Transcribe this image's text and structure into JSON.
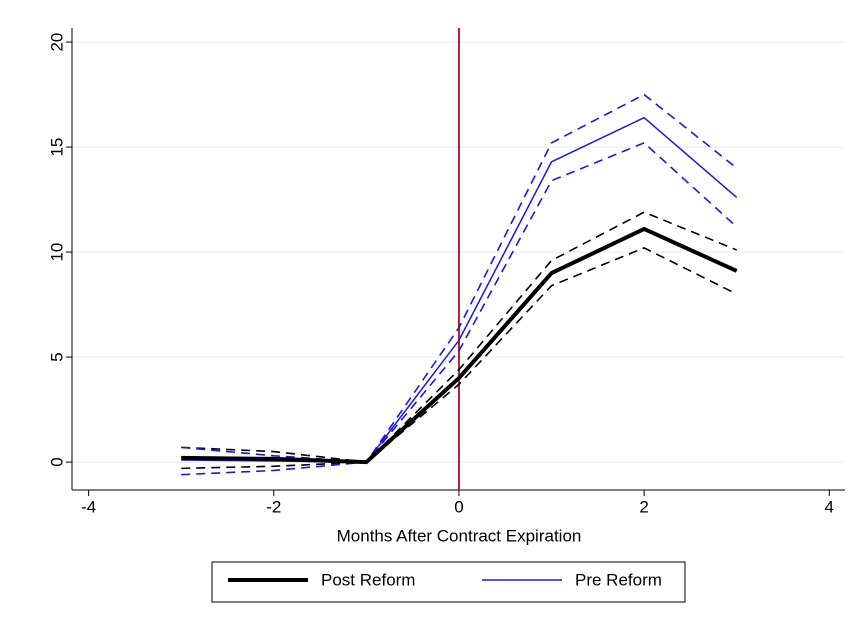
{
  "chart_data": {
    "type": "line",
    "x_label": "Months After Contract Expiration",
    "x": [
      -3,
      -2,
      -1,
      0,
      1,
      2,
      3
    ],
    "series": [
      {
        "name": "Post Reform",
        "color": "#000000",
        "width": 4,
        "values": [
          0.2,
          0.15,
          0,
          4.0,
          9.0,
          11.1,
          9.1
        ],
        "ci_upper": [
          0.7,
          0.5,
          0,
          4.4,
          9.6,
          11.9,
          10.1
        ],
        "ci_lower": [
          -0.3,
          -0.2,
          0,
          3.7,
          8.4,
          10.2,
          8.0
        ]
      },
      {
        "name": "Pre Reform",
        "color": "#1a1adb",
        "width": 1.5,
        "values": [
          0.1,
          0.05,
          0,
          5.8,
          14.3,
          16.4,
          12.6
        ],
        "ci_upper": [
          0.7,
          0.3,
          0,
          6.4,
          15.2,
          17.5,
          14.0
        ],
        "ci_lower": [
          -0.6,
          -0.4,
          0,
          5.3,
          13.4,
          15.2,
          11.2
        ]
      }
    ],
    "xlim": [
      -4.18,
      4.17
    ],
    "xticks": [
      -4,
      -2,
      0,
      2,
      4
    ],
    "ylim": [
      -1.33,
      20.67
    ],
    "yticks": [
      0,
      5,
      10,
      15,
      20
    ],
    "vline": 0,
    "vline_color": "#b0203a",
    "grid": true,
    "legend": "bottom"
  }
}
